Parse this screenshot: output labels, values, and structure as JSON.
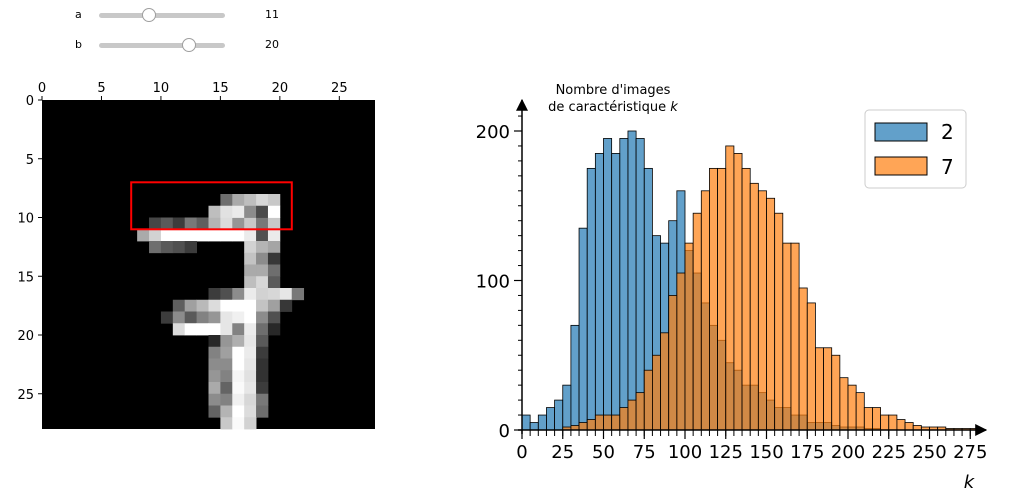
{
  "sliders": [
    {
      "label": "a",
      "value": 11,
      "min": 0,
      "max": 28,
      "display": "11"
    },
    {
      "label": "b",
      "value": 20,
      "min": 0,
      "max": 28,
      "display": "20"
    }
  ],
  "image_panel": {
    "x_ticks": [
      "0",
      "5",
      "10",
      "15",
      "20",
      "25"
    ],
    "y_ticks": [
      "0",
      "5",
      "10",
      "15",
      "20",
      "25"
    ],
    "highlight_color": "#ff0000",
    "highlight_rows": [
      7,
      11
    ],
    "highlight_cols": [
      7.5,
      21
    ],
    "pixels": [
      [
        10,
        9,
        70
      ],
      [
        10,
        10,
        90
      ],
      [
        10,
        11,
        60
      ],
      [
        10,
        12,
        120
      ],
      [
        10,
        13,
        95
      ],
      [
        10,
        14,
        180
      ],
      [
        10,
        15,
        220
      ],
      [
        10,
        16,
        150
      ],
      [
        10,
        17,
        200
      ],
      [
        10,
        18,
        120
      ],
      [
        10,
        19,
        200
      ],
      [
        8,
        15,
        110
      ],
      [
        8,
        16,
        170
      ],
      [
        8,
        17,
        190
      ],
      [
        8,
        18,
        215
      ],
      [
        8,
        19,
        200
      ],
      [
        9,
        14,
        190
      ],
      [
        9,
        15,
        225
      ],
      [
        9,
        16,
        235
      ],
      [
        9,
        17,
        140
      ],
      [
        9,
        18,
        75
      ],
      [
        9,
        19,
        255
      ],
      [
        11,
        8,
        170
      ],
      [
        11,
        9,
        210
      ],
      [
        11,
        10,
        255
      ],
      [
        11,
        11,
        255
      ],
      [
        11,
        12,
        255
      ],
      [
        11,
        13,
        255
      ],
      [
        11,
        14,
        255
      ],
      [
        11,
        15,
        255
      ],
      [
        11,
        16,
        255
      ],
      [
        11,
        17,
        235
      ],
      [
        11,
        18,
        80
      ],
      [
        11,
        19,
        235
      ],
      [
        12,
        9,
        110
      ],
      [
        12,
        10,
        90
      ],
      [
        12,
        11,
        80
      ],
      [
        12,
        12,
        60
      ],
      [
        12,
        17,
        210
      ],
      [
        12,
        18,
        180
      ],
      [
        12,
        19,
        165
      ],
      [
        13,
        17,
        195
      ],
      [
        13,
        18,
        140
      ],
      [
        13,
        19,
        55
      ],
      [
        14,
        17,
        170
      ],
      [
        14,
        18,
        170
      ],
      [
        14,
        19,
        110
      ],
      [
        15,
        17,
        190
      ],
      [
        15,
        18,
        215
      ],
      [
        15,
        19,
        90
      ],
      [
        16,
        14,
        60
      ],
      [
        16,
        15,
        80
      ],
      [
        16,
        16,
        140
      ],
      [
        16,
        17,
        235
      ],
      [
        16,
        18,
        210
      ],
      [
        16,
        19,
        215
      ],
      [
        16,
        20,
        230
      ],
      [
        16,
        21,
        120
      ],
      [
        17,
        11,
        95
      ],
      [
        17,
        12,
        160
      ],
      [
        17,
        13,
        185
      ],
      [
        17,
        14,
        220
      ],
      [
        17,
        15,
        255
      ],
      [
        17,
        16,
        255
      ],
      [
        17,
        17,
        255
      ],
      [
        17,
        18,
        195
      ],
      [
        17,
        19,
        160
      ],
      [
        17,
        20,
        55
      ],
      [
        18,
        10,
        60
      ],
      [
        18,
        11,
        140
      ],
      [
        18,
        12,
        90
      ],
      [
        18,
        13,
        130
      ],
      [
        18,
        14,
        150
      ],
      [
        18,
        15,
        230
      ],
      [
        18,
        16,
        240
      ],
      [
        18,
        17,
        255
      ],
      [
        18,
        18,
        140
      ],
      [
        18,
        19,
        80
      ],
      [
        19,
        11,
        220
      ],
      [
        19,
        12,
        255
      ],
      [
        19,
        13,
        255
      ],
      [
        19,
        14,
        255
      ],
      [
        19,
        15,
        230
      ],
      [
        19,
        16,
        130
      ],
      [
        19,
        17,
        235
      ],
      [
        19,
        18,
        110
      ],
      [
        19,
        19,
        40
      ],
      [
        20,
        14,
        40
      ],
      [
        20,
        15,
        150
      ],
      [
        20,
        16,
        175
      ],
      [
        20,
        17,
        230
      ],
      [
        20,
        18,
        90
      ],
      [
        21,
        14,
        130
      ],
      [
        21,
        15,
        160
      ],
      [
        21,
        16,
        255
      ],
      [
        21,
        17,
        235
      ],
      [
        21,
        18,
        60
      ],
      [
        22,
        14,
        140
      ],
      [
        22,
        15,
        140
      ],
      [
        22,
        16,
        255
      ],
      [
        22,
        17,
        230
      ],
      [
        22,
        18,
        50
      ],
      [
        23,
        14,
        150
      ],
      [
        23,
        15,
        130
      ],
      [
        23,
        16,
        245
      ],
      [
        23,
        17,
        225
      ],
      [
        23,
        18,
        50
      ],
      [
        24,
        14,
        170
      ],
      [
        24,
        15,
        100
      ],
      [
        24,
        16,
        250
      ],
      [
        24,
        17,
        230
      ],
      [
        24,
        18,
        60
      ],
      [
        25,
        14,
        140
      ],
      [
        25,
        15,
        130
      ],
      [
        25,
        16,
        240
      ],
      [
        25,
        17,
        215
      ],
      [
        25,
        18,
        120
      ],
      [
        26,
        14,
        100
      ],
      [
        26,
        15,
        180
      ],
      [
        26,
        16,
        255
      ],
      [
        26,
        17,
        220
      ],
      [
        26,
        18,
        110
      ],
      [
        27,
        15,
        200
      ],
      [
        27,
        16,
        250
      ],
      [
        27,
        17,
        210
      ]
    ]
  },
  "chart_data": {
    "type": "bar",
    "ylabel_line1": "Nombre d'images",
    "ylabel_line2": "de caractéristique",
    "ylabel_var": "k",
    "xlabel": "k",
    "bin_start": 0,
    "bin_width": 5,
    "xlim": [
      0,
      280
    ],
    "ylim": [
      0,
      215
    ],
    "x_ticks": [
      0,
      25,
      50,
      75,
      100,
      125,
      150,
      175,
      200,
      225,
      250,
      275
    ],
    "y_ticks": [
      0,
      100,
      200
    ],
    "legend_position": "top-right",
    "series": [
      {
        "name": "2",
        "color": "#1f77b4",
        "values": [
          10,
          5,
          10,
          15,
          20,
          30,
          70,
          135,
          175,
          185,
          195,
          185,
          195,
          200,
          195,
          175,
          130,
          125,
          140,
          160,
          120,
          105,
          85,
          70,
          60,
          45,
          40,
          30,
          30,
          25,
          20,
          15,
          15,
          10,
          10,
          5,
          5,
          5,
          3,
          2,
          2,
          2,
          1,
          1,
          0,
          0,
          0,
          0,
          0,
          0,
          0,
          0,
          0,
          0,
          0,
          0
        ]
      },
      {
        "name": "7",
        "color": "#ff7f0e",
        "values": [
          0,
          0,
          0,
          0,
          0,
          2,
          3,
          5,
          7,
          10,
          10,
          10,
          15,
          20,
          25,
          40,
          50,
          65,
          90,
          105,
          125,
          145,
          160,
          175,
          175,
          190,
          185,
          175,
          165,
          160,
          155,
          145,
          125,
          125,
          95,
          85,
          55,
          55,
          50,
          35,
          30,
          25,
          15,
          15,
          10,
          10,
          7,
          5,
          3,
          2,
          2,
          2,
          1,
          1,
          1,
          1
        ]
      }
    ]
  }
}
